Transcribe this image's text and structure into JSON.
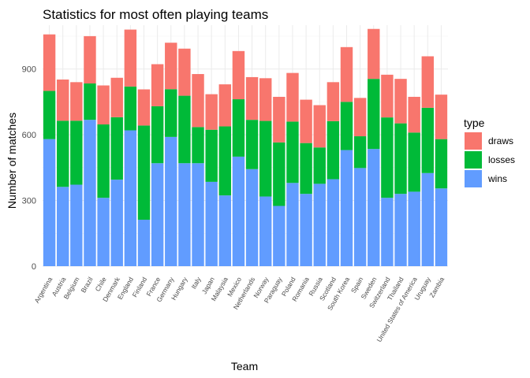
{
  "chart_data": {
    "type": "bar",
    "stacked": true,
    "title": "Statistics for most often playing teams",
    "xlabel": "Team",
    "ylabel": "Number of matches",
    "ylim": [
      0,
      1100
    ],
    "yticks": [
      0,
      300,
      600,
      900
    ],
    "grid": true,
    "legend": {
      "title": "type",
      "position": "right"
    },
    "categories": [
      "Argentina",
      "Austria",
      "Belgium",
      "Brazil",
      "Chile",
      "Denmark",
      "England",
      "Finland",
      "France",
      "Germany",
      "Hungary",
      "Italy",
      "Japan",
      "Malaysia",
      "Mexico",
      "Netherlands",
      "Norway",
      "Paraguay",
      "Poland",
      "Romania",
      "Russia",
      "Scotland",
      "South Korea",
      "Spain",
      "Sweden",
      "Switzerland",
      "Thailand",
      "United States of America",
      "Uruguay",
      "Zambia"
    ],
    "series": [
      {
        "name": "wins",
        "color": "#619CFF",
        "values": [
          580,
          362,
          372,
          668,
          312,
          395,
          620,
          212,
          470,
          590,
          470,
          470,
          385,
          323,
          500,
          443,
          318,
          275,
          380,
          330,
          376,
          397,
          530,
          448,
          535,
          312,
          330,
          340,
          425,
          355
        ]
      },
      {
        "name": "losses",
        "color": "#00BA38",
        "values": [
          220,
          302,
          292,
          166,
          335,
          285,
          200,
          430,
          260,
          218,
          308,
          165,
          238,
          315,
          262,
          225,
          345,
          290,
          280,
          232,
          166,
          265,
          220,
          145,
          320,
          367,
          322,
          270,
          298,
          225
        ]
      },
      {
        "name": "draws",
        "color": "#F8766D",
        "values": [
          258,
          188,
          176,
          216,
          178,
          180,
          260,
          165,
          192,
          212,
          215,
          242,
          162,
          192,
          220,
          195,
          195,
          208,
          222,
          198,
          193,
          178,
          250,
          175,
          228,
          195,
          203,
          163,
          235,
          203
        ]
      }
    ]
  }
}
